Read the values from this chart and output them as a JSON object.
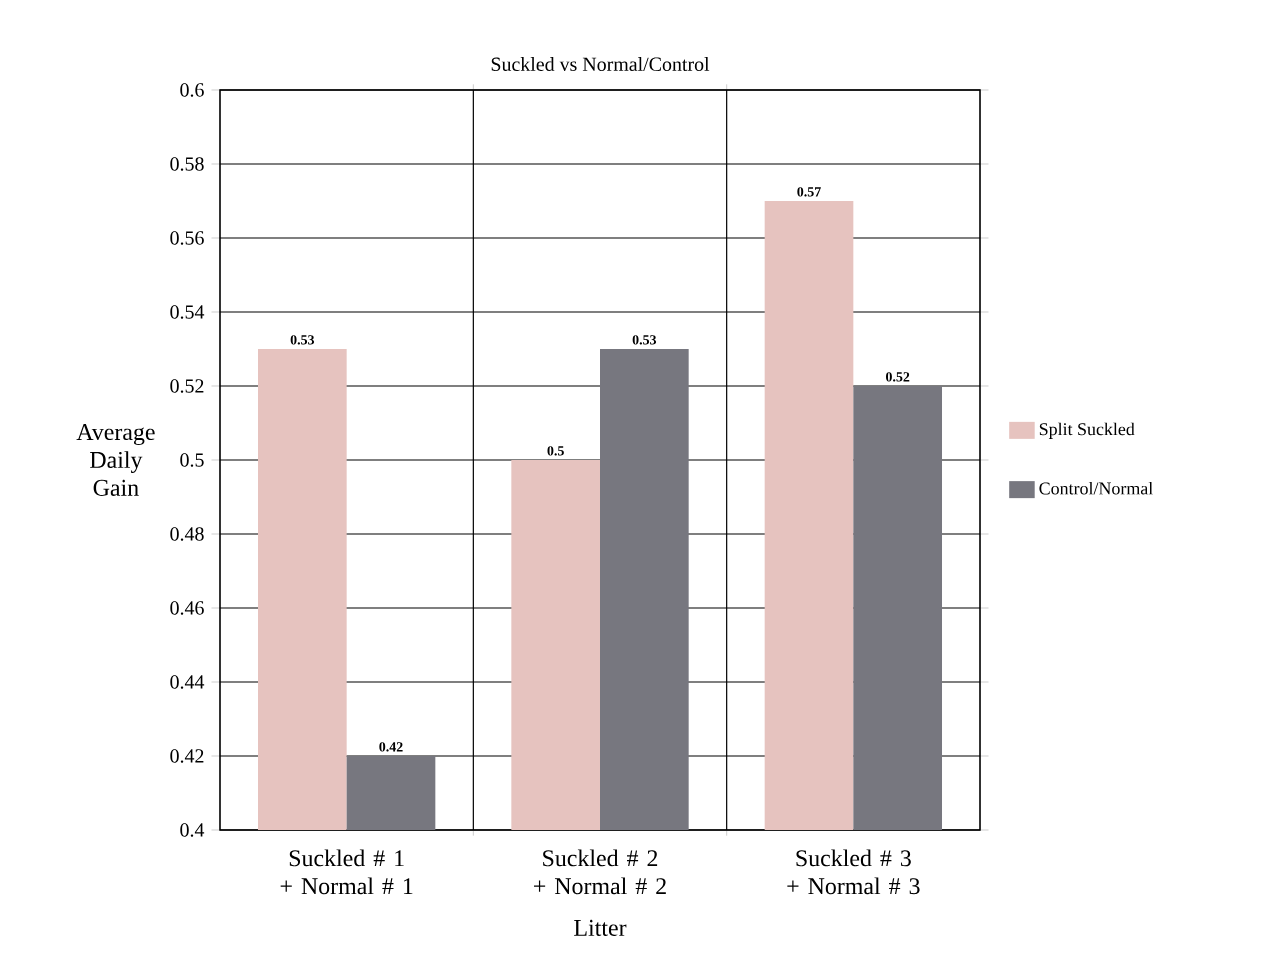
{
  "chart_data": {
    "type": "bar",
    "title": "Suckled vs Normal/Control",
    "xlabel": "Litter",
    "ylabel": "Average Daily Gain",
    "categories": [
      "Suckled # 1 + Normal # 1",
      "Suckled # 2 + Normal # 2",
      "Suckled # 3 + Normal # 3"
    ],
    "series": [
      {
        "name": "Split Suckled",
        "color": "#e6c3bf",
        "values": [
          0.53,
          0.5,
          0.57
        ]
      },
      {
        "name": "Control/Normal",
        "color": "#77777f",
        "values": [
          0.42,
          0.53,
          0.52
        ]
      }
    ],
    "ylim": [
      0.4,
      0.6
    ],
    "yticks": [
      0.4,
      0.42,
      0.44,
      0.46,
      0.48,
      0.5,
      0.52,
      0.54,
      0.56,
      0.58,
      0.6
    ],
    "grid": true,
    "legend": "right",
    "data_labels": true
  }
}
